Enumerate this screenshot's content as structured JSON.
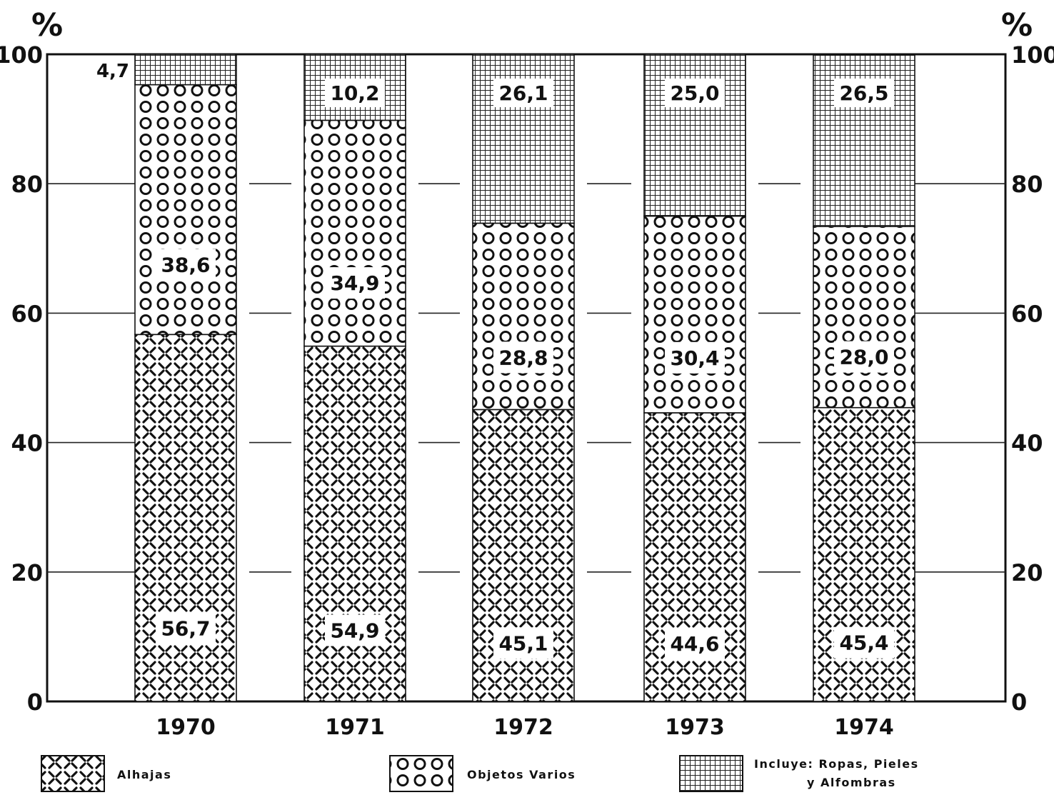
{
  "chart_data": {
    "type": "bar",
    "stacked": true,
    "unit_label": "%",
    "categories": [
      "1970",
      "1971",
      "1972",
      "1973",
      "1974"
    ],
    "ylim": [
      0,
      100
    ],
    "yticks": [
      "0",
      "20",
      "40",
      "60",
      "80",
      "100"
    ],
    "series": [
      {
        "name": "Alhajas",
        "pattern": "diagonal-cross",
        "values": [
          56.7,
          54.9,
          45.1,
          44.6,
          45.4
        ],
        "labels": [
          "56,7",
          "54,9",
          "45,1",
          "44,6",
          "45,4"
        ]
      },
      {
        "name": "Objetos Varios",
        "pattern": "circles",
        "values": [
          38.6,
          34.9,
          28.8,
          30.4,
          28.0
        ],
        "labels": [
          "38,6",
          "34,9",
          "28,8",
          "30,4",
          "28,0"
        ]
      },
      {
        "name": "Incluye: Ropas, Pieles y Alfombras",
        "pattern": "grid",
        "values": [
          4.7,
          10.2,
          26.1,
          25.0,
          26.5
        ],
        "labels": [
          "4,7",
          "10,2",
          "26,1",
          "25,0",
          "26,5"
        ]
      }
    ],
    "legend": {
      "position": "bottom",
      "items": [
        {
          "lines": [
            "Alhajas"
          ]
        },
        {
          "lines": [
            "Objetos Varios"
          ]
        },
        {
          "lines": [
            "Incluye: Ropas, Pieles",
            "y Alfombras"
          ]
        }
      ]
    },
    "grid": "partial-horizontal",
    "colors": {
      "ink": "#111111",
      "paper": "#ffffff"
    }
  }
}
